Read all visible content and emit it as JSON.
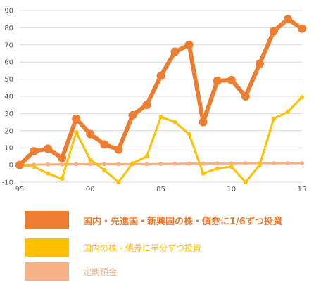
{
  "chart_data": {
    "type": "line",
    "title": "",
    "xlabel": "",
    "ylabel": "",
    "x": [
      1995,
      1996,
      1997,
      1998,
      1999,
      2000,
      2001,
      2002,
      2003,
      2004,
      2005,
      2006,
      2007,
      2008,
      2009,
      2010,
      2011,
      2012,
      2013,
      2014,
      2015
    ],
    "xlim": [
      1995,
      2015
    ],
    "ylim": [
      -10,
      90
    ],
    "xticks": [
      {
        "value": 1995,
        "label": "95"
      },
      {
        "value": 2000,
        "label": "00"
      },
      {
        "value": 2005,
        "label": "05"
      },
      {
        "value": 2010,
        "label": "10"
      },
      {
        "value": 2015,
        "label": "15"
      }
    ],
    "yticks": [
      -10,
      0,
      10,
      20,
      30,
      40,
      50,
      60,
      70,
      80,
      90
    ],
    "grid": true,
    "legend_position": "bottom",
    "series": [
      {
        "name": "国内・先進国・新興国の株・債券に1/6ずつ投資",
        "color": "#ED7D31",
        "values": [
          0,
          8,
          9.5,
          4,
          27,
          18,
          12,
          9,
          29,
          35,
          52,
          66,
          70,
          25,
          49,
          49.5,
          40,
          59,
          78,
          85,
          79.5
        ]
      },
      {
        "name": "国内の株・債券に半分ずつ投資",
        "color": "#FFC000",
        "values": [
          0,
          -1,
          -5,
          -8,
          19,
          3,
          -3,
          -10,
          1,
          5,
          28,
          25,
          18,
          -5,
          -2,
          -1,
          -10,
          0,
          27,
          31,
          39.5
        ]
      },
      {
        "name": "定期預金",
        "color": "#F4B183",
        "values": [
          0,
          0.2,
          0.3,
          0.4,
          0.5,
          0.5,
          0.5,
          0.5,
          0.5,
          0.5,
          0.6,
          0.7,
          0.8,
          0.8,
          0.9,
          0.9,
          1.0,
          1.0,
          1.0,
          1.0,
          1.0
        ]
      }
    ]
  }
}
